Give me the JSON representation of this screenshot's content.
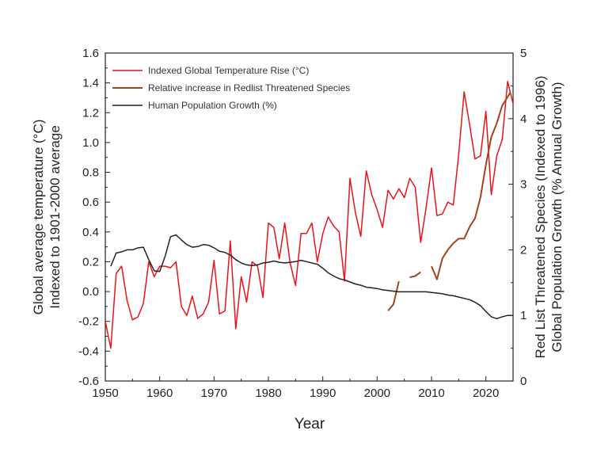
{
  "chart_data": {
    "type": "line",
    "xlabel": "Year",
    "ylabel_left": [
      "Global average temperature (°C)",
      "Indexed to 1901-2000 average"
    ],
    "ylabel_right": [
      "Red List  Threatened Species (Indexed to 1996)",
      "Global Population Growth (% Annual Growth)"
    ],
    "xlim": [
      1950,
      2025
    ],
    "ylim_left": [
      -0.6,
      1.6
    ],
    "ylim_right": [
      0,
      5
    ],
    "x_ticks": [
      "1950",
      "1960",
      "1970",
      "1980",
      "1990",
      "2000",
      "2010",
      "2020"
    ],
    "y_left_ticks": [
      "-0.6",
      "-0.4",
      "-0.2",
      "0.0",
      "0.2",
      "0.4",
      "0.6",
      "0.8",
      "1.0",
      "1.2",
      "1.4",
      "1.6"
    ],
    "y_right_ticks": [
      "0",
      "1",
      "2",
      "3",
      "4",
      "5"
    ],
    "legend_position": "top-left",
    "series": [
      {
        "name": "Indexed Global Temperature Rise (°C)",
        "axis": "left",
        "color": "#e8141a",
        "x": [
          1950,
          1951,
          1952,
          1953,
          1954,
          1955,
          1956,
          1957,
          1958,
          1959,
          1960,
          1961,
          1962,
          1963,
          1964,
          1965,
          1966,
          1967,
          1968,
          1969,
          1970,
          1971,
          1972,
          1973,
          1974,
          1975,
          1976,
          1977,
          1978,
          1979,
          1980,
          1981,
          1982,
          1983,
          1984,
          1985,
          1986,
          1987,
          1988,
          1989,
          1990,
          1991,
          1992,
          1993,
          1994,
          1995,
          1996,
          1997,
          1998,
          1999,
          2000,
          2001,
          2002,
          2003,
          2004,
          2005,
          2006,
          2007,
          2008,
          2009,
          2010,
          2011,
          2012,
          2013,
          2014,
          2015,
          2016,
          2017,
          2018,
          2019,
          2020,
          2021,
          2022,
          2023,
          2024,
          2025
        ],
        "y": [
          -0.2,
          -0.38,
          0.12,
          0.17,
          -0.06,
          -0.19,
          -0.17,
          -0.08,
          0.2,
          0.1,
          0.17,
          0.17,
          0.16,
          0.2,
          -0.1,
          -0.16,
          -0.03,
          -0.18,
          -0.15,
          -0.07,
          0.21,
          -0.15,
          -0.13,
          0.34,
          -0.25,
          0.1,
          -0.07,
          0.2,
          0.17,
          -0.04,
          0.46,
          0.43,
          0.22,
          0.46,
          0.19,
          0.04,
          0.39,
          0.39,
          0.46,
          0.2,
          0.39,
          0.5,
          0.44,
          0.4,
          0.07,
          0.76,
          0.53,
          0.37,
          0.81,
          0.65,
          0.55,
          0.43,
          0.68,
          0.62,
          0.69,
          0.63,
          0.76,
          0.7,
          0.33,
          0.56,
          0.83,
          0.51,
          0.52,
          0.6,
          0.58,
          0.92,
          1.34,
          1.12,
          0.89,
          0.91,
          1.21,
          0.65,
          0.91,
          1.02,
          1.41,
          1.26
        ]
      },
      {
        "name": "Relative increase in Redlist Threatened Species",
        "axis": "right",
        "color": "#a0461c",
        "x": [
          2002,
          2003,
          2004,
          2005,
          2006,
          2007,
          2008,
          2009,
          2010,
          2011,
          2012,
          2013,
          2014,
          2015,
          2016,
          2017,
          2018,
          2019,
          2020,
          2021,
          2022,
          2023,
          2024,
          2024.5
        ],
        "y": [
          1.07,
          1.17,
          1.52,
          null,
          1.58,
          1.6,
          1.66,
          null,
          1.75,
          1.55,
          1.87,
          2.0,
          2.1,
          2.17,
          2.17,
          2.35,
          2.48,
          2.8,
          3.3,
          3.72,
          3.93,
          4.2,
          4.33,
          4.4
        ]
      },
      {
        "name": "Human Population Growth (%)",
        "axis": "right",
        "color": "#222222",
        "x": [
          1951,
          1952,
          1953,
          1954,
          1955,
          1956,
          1957,
          1958,
          1959,
          1960,
          1961,
          1962,
          1963,
          1964,
          1965,
          1966,
          1967,
          1968,
          1969,
          1970,
          1971,
          1972,
          1973,
          1974,
          1975,
          1976,
          1977,
          1978,
          1979,
          1980,
          1981,
          1982,
          1983,
          1984,
          1985,
          1986,
          1987,
          1988,
          1989,
          1990,
          1991,
          1992,
          1993,
          1994,
          1995,
          1996,
          1997,
          1998,
          1999,
          2000,
          2001,
          2002,
          2003,
          2004,
          2005,
          2006,
          2007,
          2008,
          2009,
          2010,
          2011,
          2012,
          2013,
          2014,
          2015,
          2016,
          2017,
          2018,
          2019,
          2020,
          2021,
          2022,
          2023,
          2024,
          2025
        ],
        "y": [
          1.75,
          1.95,
          1.97,
          2.0,
          2.0,
          2.03,
          2.04,
          1.85,
          1.68,
          1.67,
          1.9,
          2.2,
          2.23,
          2.15,
          2.08,
          2.04,
          2.05,
          2.08,
          2.07,
          2.03,
          1.98,
          1.96,
          1.92,
          1.85,
          1.8,
          1.77,
          1.76,
          1.77,
          1.8,
          1.81,
          1.83,
          1.81,
          1.8,
          1.81,
          1.82,
          1.84,
          1.82,
          1.8,
          1.78,
          1.72,
          1.65,
          1.6,
          1.56,
          1.54,
          1.51,
          1.48,
          1.46,
          1.43,
          1.42,
          1.41,
          1.39,
          1.38,
          1.37,
          1.36,
          1.36,
          1.36,
          1.36,
          1.36,
          1.36,
          1.35,
          1.34,
          1.33,
          1.31,
          1.3,
          1.28,
          1.26,
          1.24,
          1.2,
          1.15,
          1.06,
          0.98,
          0.95,
          0.98,
          1.0,
          1.0
        ]
      }
    ]
  }
}
